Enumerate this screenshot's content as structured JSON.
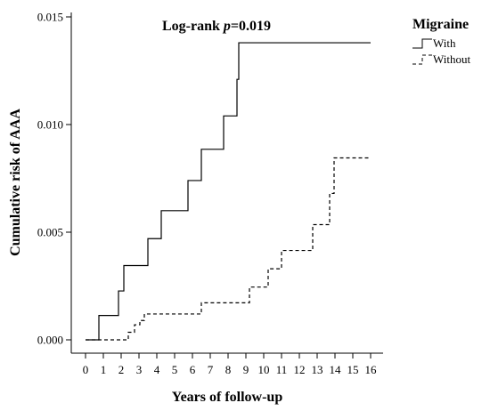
{
  "chart_data": {
    "type": "line",
    "step": true,
    "xlabel": "Years of follow-up",
    "ylabel": "Cumulative risk of AAA",
    "xlim": [
      0,
      16
    ],
    "ylim": [
      0,
      0.015
    ],
    "x_ticks": [
      "0",
      "1",
      "2",
      "3",
      "4",
      "5",
      "6",
      "7",
      "8",
      "9",
      "10",
      "11",
      "12",
      "13",
      "14",
      "15",
      "16"
    ],
    "y_ticks": [
      "0.000",
      "0.005",
      "0.010",
      "0.015"
    ],
    "annotation": {
      "prefix": "Log-rank ",
      "p": "p",
      "suffix": "=0.019"
    },
    "legend": {
      "title": "Migraine",
      "position": "top-right"
    },
    "grid": false,
    "series": [
      {
        "name": "With",
        "style": "solid",
        "color": "#000000",
        "points": [
          [
            0,
            0
          ],
          [
            0.75,
            0
          ],
          [
            0.75,
            0.00113
          ],
          [
            1.85,
            0.00113
          ],
          [
            1.85,
            0.00227
          ],
          [
            2.15,
            0.00227
          ],
          [
            2.15,
            0.00345
          ],
          [
            3.5,
            0.00345
          ],
          [
            3.5,
            0.0047
          ],
          [
            4.25,
            0.0047
          ],
          [
            4.25,
            0.006
          ],
          [
            5.75,
            0.006
          ],
          [
            5.75,
            0.0074
          ],
          [
            6.5,
            0.0074
          ],
          [
            6.5,
            0.00885
          ],
          [
            7.75,
            0.00885
          ],
          [
            7.75,
            0.0104
          ],
          [
            8.5,
            0.0104
          ],
          [
            8.5,
            0.0121
          ],
          [
            8.6,
            0.0121
          ],
          [
            8.6,
            0.0138
          ],
          [
            16,
            0.0138
          ]
        ]
      },
      {
        "name": "Without",
        "style": "dashed",
        "color": "#000000",
        "points": [
          [
            0,
            0
          ],
          [
            2.4,
            0
          ],
          [
            2.4,
            0.00035
          ],
          [
            2.75,
            0.00035
          ],
          [
            2.75,
            0.0007
          ],
          [
            3.05,
            0.0007
          ],
          [
            3.05,
            0.0009
          ],
          [
            3.3,
            0.0009
          ],
          [
            3.3,
            0.0012
          ],
          [
            6.5,
            0.0012
          ],
          [
            6.5,
            0.00172
          ],
          [
            9.2,
            0.00172
          ],
          [
            9.2,
            0.00245
          ],
          [
            10.25,
            0.00245
          ],
          [
            10.25,
            0.0033
          ],
          [
            11.0,
            0.0033
          ],
          [
            11.0,
            0.00415
          ],
          [
            12.75,
            0.00415
          ],
          [
            12.75,
            0.00535
          ],
          [
            13.7,
            0.00535
          ],
          [
            13.7,
            0.0068
          ],
          [
            13.95,
            0.0068
          ],
          [
            13.95,
            0.00845
          ],
          [
            16,
            0.00845
          ]
        ]
      }
    ]
  }
}
